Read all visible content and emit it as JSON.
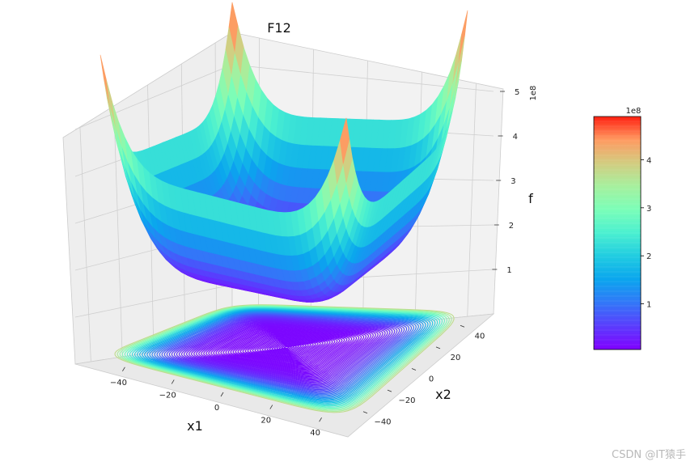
{
  "chart_data": {
    "type": "surface3d",
    "title": "F12",
    "xlabel": "x1",
    "ylabel": "x2",
    "zlabel": "f",
    "z_offset_label": "1e8",
    "xlim": [
      -50,
      50
    ],
    "ylim": [
      -50,
      50
    ],
    "zlim": [
      0,
      5
    ],
    "x_ticks": [
      "−40",
      "−20",
      "0",
      "20",
      "40"
    ],
    "y_ticks": [
      "−40",
      "−20",
      "0",
      "20",
      "40"
    ],
    "z_ticks": [
      "1",
      "2",
      "3",
      "4",
      "5"
    ],
    "x_tick_values": [
      -40,
      -20,
      0,
      20,
      40
    ],
    "y_tick_values": [
      -40,
      -20,
      0,
      20,
      40
    ],
    "z_tick_values": [
      1,
      2,
      3,
      4,
      5
    ],
    "colormap": "rainbow",
    "contour_projection": "bottom",
    "corner_peak_values_1e8": [
      4.9,
      4.9,
      4.9,
      4.9
    ],
    "colorbar": {
      "offset_label": "1e8",
      "ticks": [
        "1",
        "2",
        "3",
        "4"
      ],
      "tick_values": [
        1,
        2,
        3,
        4
      ],
      "range": [
        0.05,
        4.9
      ]
    },
    "grid": true
  },
  "watermark": "CSDN @IT猿手"
}
